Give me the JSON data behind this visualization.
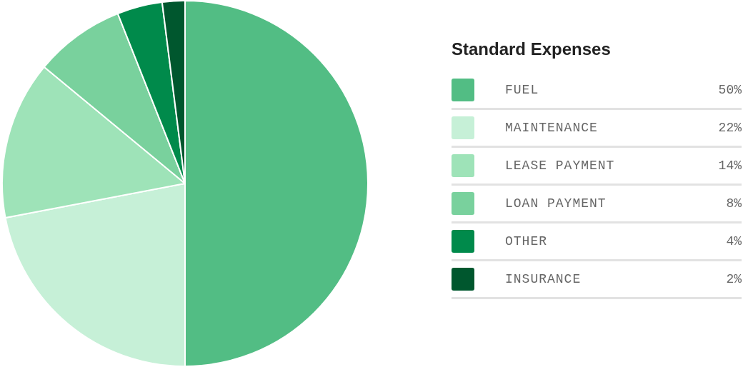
{
  "chart_data": {
    "type": "pie",
    "legend_title": "Standard Expenses",
    "legend": "right",
    "categories": [
      "FUEL",
      "MAINTENANCE",
      "LEASE PAYMENT",
      "LOAN PAYMENT",
      "OTHER",
      "INSURANCE"
    ],
    "values": [
      50,
      22,
      14,
      8,
      4,
      2
    ],
    "value_labels": [
      "50%",
      "22%",
      "14%",
      "8%",
      "4%",
      "2%"
    ],
    "colors": [
      "#52bd84",
      "#c6f0d7",
      "#9ee3b8",
      "#79d19d",
      "#008a4b",
      "#00572e"
    ]
  }
}
